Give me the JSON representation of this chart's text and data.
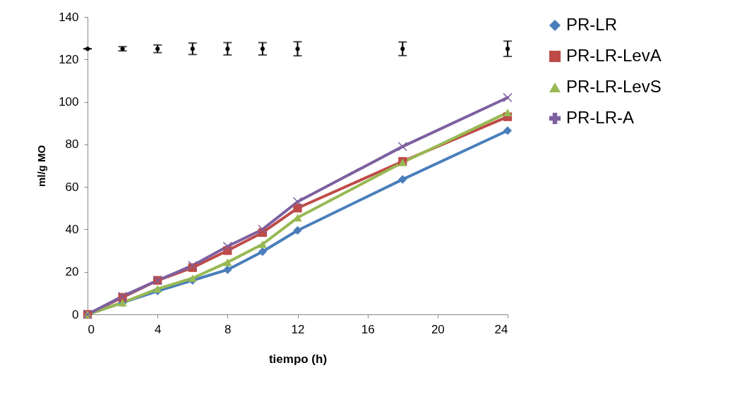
{
  "chart_data": {
    "type": "line",
    "xlabel": "tiempo (h)",
    "ylabel": "ml/g MO",
    "x": [
      0,
      2,
      4,
      6,
      8,
      10,
      12,
      18,
      24
    ],
    "xlim": [
      0,
      24
    ],
    "xticks": [
      0,
      4,
      8,
      12,
      16,
      20,
      24
    ],
    "ylim": [
      0,
      140
    ],
    "yticks": [
      0,
      20,
      40,
      60,
      80,
      100,
      120,
      140
    ],
    "grid": false,
    "legend": "right",
    "series": [
      {
        "name": "PR-LR",
        "color": "#4a7ebb",
        "marker": "diamond",
        "values": [
          0,
          5.5,
          11,
          16,
          21,
          29.5,
          39.5,
          63.5,
          86.5
        ]
      },
      {
        "name": "PR-LR-LevA",
        "color": "#be4b48",
        "marker": "square",
        "values": [
          0,
          8,
          16,
          22,
          30,
          38.5,
          50,
          72,
          93
        ]
      },
      {
        "name": "PR-LR-LevS",
        "color": "#98b954",
        "marker": "triangle",
        "values": [
          0,
          5.5,
          12,
          17,
          24.5,
          33,
          45.5,
          71.5,
          95
        ]
      },
      {
        "name": "PR-LR-A",
        "color": "#7d60a0",
        "marker": "cross",
        "values": [
          0,
          8.5,
          16,
          23,
          32,
          40,
          53,
          79,
          102
        ]
      },
      {
        "type": "scatter",
        "color": "#000000",
        "marker": "circle",
        "values": [
          125,
          125,
          125,
          125,
          125,
          125,
          125,
          125,
          125
        ],
        "errors": [
          0,
          1,
          1.8,
          2.7,
          2.9,
          2.9,
          3.3,
          3.2,
          3.6
        ]
      }
    ]
  }
}
